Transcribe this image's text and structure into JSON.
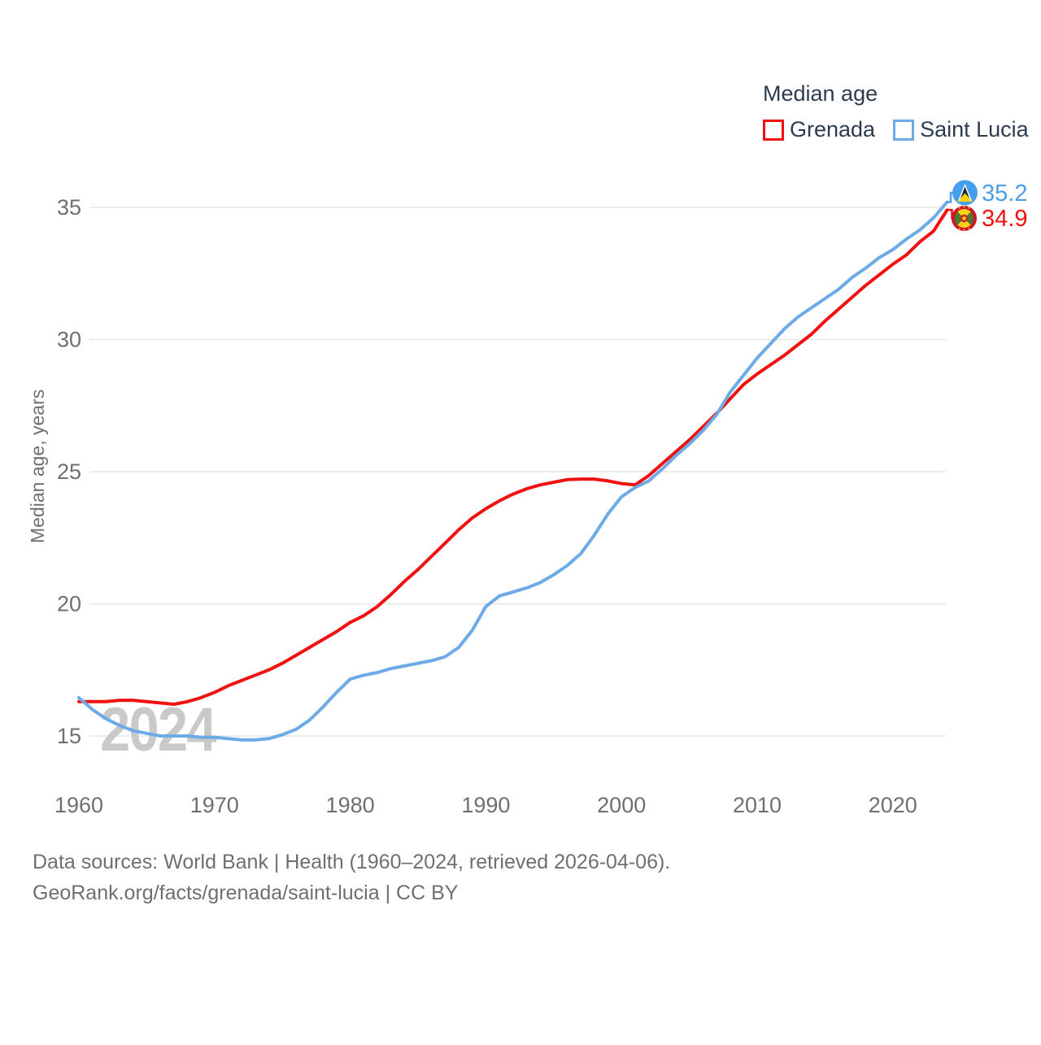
{
  "legend": {
    "title": "Median age",
    "items": [
      {
        "label": "Grenada",
        "color": "#f01111"
      },
      {
        "label": "Saint Lucia",
        "color": "#6dabe8"
      }
    ]
  },
  "end_labels": {
    "saint_lucia": {
      "value": "35.2",
      "color": "#4d9fe8"
    },
    "grenada": {
      "value": "34.9",
      "color": "#f01111"
    }
  },
  "watermark": {
    "text": "2024"
  },
  "footer": {
    "line1": "Data sources: World Bank | Health (1960–2024, retrieved 2026-04-06).",
    "line2": "GeoRank.org/facts/grenada/saint-lucia | CC BY"
  },
  "chart_data": {
    "type": "line",
    "title": "Median age",
    "xlabel": "",
    "ylabel": "Median age, years",
    "grid": "horizontal",
    "legend_position": "top-right",
    "xlim": [
      1958.5,
      2026
    ],
    "ylim": [
      13.5,
      36
    ],
    "xticks": [
      1960,
      1970,
      1980,
      1990,
      2000,
      2010,
      2020
    ],
    "yticks": [
      15,
      20,
      25,
      30,
      35
    ],
    "x": [
      1960,
      1961,
      1962,
      1963,
      1964,
      1965,
      1966,
      1967,
      1968,
      1969,
      1970,
      1971,
      1972,
      1973,
      1974,
      1975,
      1976,
      1977,
      1978,
      1979,
      1980,
      1981,
      1982,
      1983,
      1984,
      1985,
      1986,
      1987,
      1988,
      1989,
      1990,
      1991,
      1992,
      1993,
      1994,
      1995,
      1996,
      1997,
      1998,
      1999,
      2000,
      2001,
      2002,
      2003,
      2004,
      2005,
      2006,
      2007,
      2008,
      2009,
      2010,
      2011,
      2012,
      2013,
      2014,
      2015,
      2016,
      2017,
      2018,
      2019,
      2020,
      2021,
      2022,
      2023,
      2024
    ],
    "series": [
      {
        "name": "Grenada",
        "color": "#f01111",
        "end_label": "34.9",
        "values": [
          16.3,
          16.3,
          16.3,
          16.35,
          16.35,
          16.3,
          16.25,
          16.2,
          16.3,
          16.45,
          16.65,
          16.9,
          17.1,
          17.3,
          17.5,
          17.75,
          18.05,
          18.35,
          18.65,
          18.95,
          19.3,
          19.55,
          19.9,
          20.35,
          20.85,
          21.3,
          21.8,
          22.3,
          22.8,
          23.25,
          23.6,
          23.9,
          24.15,
          24.35,
          24.5,
          24.6,
          24.7,
          24.72,
          24.72,
          24.65,
          24.55,
          24.5,
          24.85,
          25.3,
          25.75,
          26.2,
          26.7,
          27.2,
          27.75,
          28.3,
          28.7,
          29.05,
          29.4,
          29.8,
          30.2,
          30.7,
          31.15,
          31.6,
          32.05,
          32.45,
          32.85,
          33.2,
          33.7,
          34.1,
          34.9
        ]
      },
      {
        "name": "Saint Lucia",
        "color": "#6dabe8",
        "end_label": "35.2",
        "values": [
          16.45,
          16.0,
          15.65,
          15.4,
          15.2,
          15.1,
          15.0,
          15.0,
          15.0,
          14.95,
          14.95,
          14.9,
          14.85,
          14.85,
          14.9,
          15.05,
          15.25,
          15.6,
          16.1,
          16.65,
          17.15,
          17.3,
          17.4,
          17.55,
          17.65,
          17.75,
          17.85,
          18.0,
          18.35,
          19.0,
          19.9,
          20.3,
          20.45,
          20.6,
          20.8,
          21.1,
          21.45,
          21.9,
          22.6,
          23.4,
          24.05,
          24.4,
          24.65,
          25.1,
          25.6,
          26.05,
          26.55,
          27.15,
          28.0,
          28.65,
          29.3,
          29.85,
          30.4,
          30.85,
          31.2,
          31.55,
          31.9,
          32.35,
          32.7,
          33.1,
          33.4,
          33.8,
          34.15,
          34.6,
          35.2
        ]
      }
    ]
  }
}
